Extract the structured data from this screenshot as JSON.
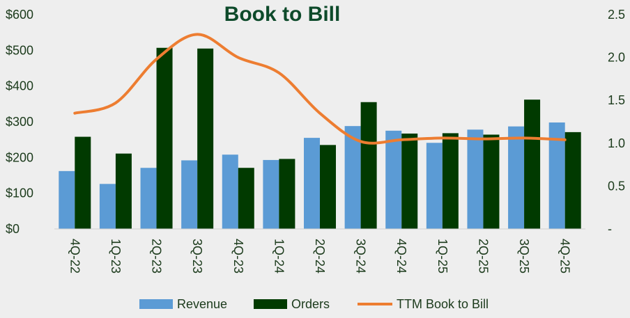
{
  "chart_data": {
    "type": "bar+line",
    "title": "Book to Bill",
    "categories": [
      "4Q-22",
      "1Q-23",
      "2Q-23",
      "3Q-23",
      "4Q-23",
      "1Q-24",
      "2Q-24",
      "3Q-24",
      "4Q-24",
      "1Q-25",
      "2Q-25",
      "3Q-25",
      "4Q-25"
    ],
    "series": [
      {
        "name": "Revenue",
        "type": "bar",
        "axis": "left",
        "color": "#5b9bd5",
        "values": [
          162,
          126,
          171,
          192,
          208,
          193,
          255,
          288,
          275,
          241,
          278,
          287,
          298
        ]
      },
      {
        "name": "Orders",
        "type": "bar",
        "axis": "left",
        "color": "#013a00",
        "values": [
          258,
          211,
          507,
          505,
          171,
          196,
          235,
          355,
          267,
          268,
          264,
          362,
          271
        ]
      },
      {
        "name": "TTM Book to Bill",
        "type": "line",
        "axis": "right",
        "color": "#ed7d31",
        "values": [
          1.35,
          1.47,
          1.98,
          2.27,
          2.0,
          1.82,
          1.35,
          1.02,
          1.04,
          1.06,
          1.05,
          1.06,
          1.04
        ]
      }
    ],
    "y_left": {
      "min": 0,
      "max": 600,
      "ticks": [
        "$0",
        "$100",
        "$200",
        "$300",
        "$400",
        "$500",
        "$600"
      ]
    },
    "y_right": {
      "min": 0,
      "max": 2.5,
      "ticks": [
        "-",
        "0.5",
        "1.0",
        "1.5",
        "2.0",
        "2.5"
      ]
    },
    "legend": {
      "position": "bottom"
    },
    "grid": false
  }
}
